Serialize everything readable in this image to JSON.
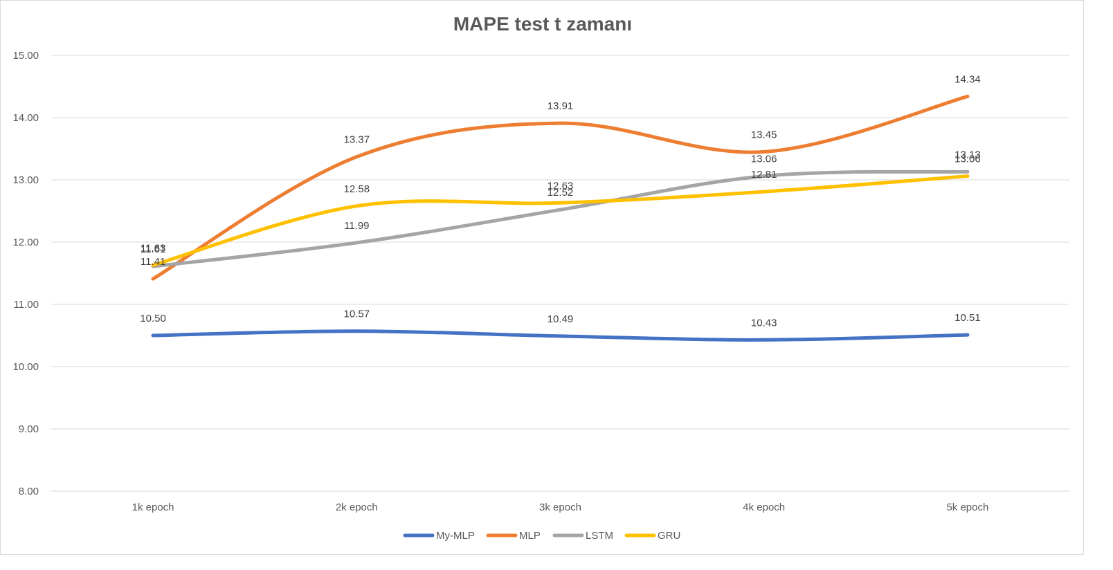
{
  "chart_data": {
    "type": "line",
    "title": "MAPE test t  zamanı",
    "categories": [
      "1k epoch",
      "2k epoch",
      "3k epoch",
      "4k epoch",
      "5k epoch"
    ],
    "ylim": [
      8.0,
      15.0
    ],
    "yticks": [
      "8.00",
      "9.00",
      "10.00",
      "11.00",
      "12.00",
      "13.00",
      "14.00",
      "15.00"
    ],
    "grid": true,
    "legend_position": "bottom",
    "series": [
      {
        "name": "My-MLP",
        "color": "#4472c4",
        "values": [
          10.5,
          10.57,
          10.49,
          10.43,
          10.51
        ],
        "labels": [
          "10.50",
          "10.57",
          "10.49",
          "10.43",
          "10.51"
        ]
      },
      {
        "name": "MLP",
        "color": "#ed7d31",
        "values": [
          11.41,
          13.37,
          13.91,
          13.45,
          14.34
        ],
        "labels": [
          "11.41",
          "13.37",
          "13.91",
          "13.45",
          "14.34"
        ]
      },
      {
        "name": "LSTM",
        "color": "#a5a5a5",
        "values": [
          11.61,
          11.99,
          12.52,
          13.06,
          13.13
        ],
        "labels": [
          "11.61",
          "11.99",
          "12.52",
          "13.06",
          "13.13"
        ]
      },
      {
        "name": "GRU",
        "color": "#ffc000",
        "values": [
          11.63,
          12.58,
          12.63,
          12.81,
          13.06
        ],
        "labels": [
          "11.63",
          "12.58",
          "12.63",
          "12.81",
          "13.06"
        ]
      }
    ]
  }
}
